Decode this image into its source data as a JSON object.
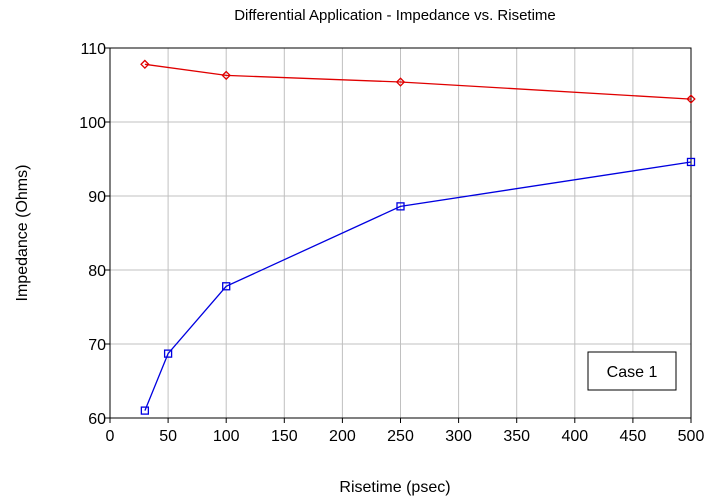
{
  "chart_data": {
    "type": "line",
    "title": "Differential Application - Impedance vs. Risetime",
    "xlabel": "Risetime (psec)",
    "ylabel": "Impedance (Ohms)",
    "xlim": [
      0,
      500
    ],
    "ylim": [
      60,
      110
    ],
    "xticks": [
      "0",
      "50",
      "100",
      "150",
      "200",
      "250",
      "300",
      "350",
      "400",
      "450",
      "500"
    ],
    "yticks": [
      "60",
      "70",
      "80",
      "90",
      "100",
      "110"
    ],
    "grid": true,
    "annotation": "Case 1",
    "series": [
      {
        "color": "#e00000",
        "marker": "diamond",
        "x": [
          30,
          100,
          250,
          500
        ],
        "y": [
          107.8,
          106.3,
          105.4,
          103.1
        ]
      },
      {
        "color": "#0000e0",
        "marker": "square",
        "x": [
          30,
          50,
          100,
          250,
          500
        ],
        "y": [
          61.0,
          68.7,
          77.8,
          88.6,
          94.6
        ]
      }
    ]
  }
}
